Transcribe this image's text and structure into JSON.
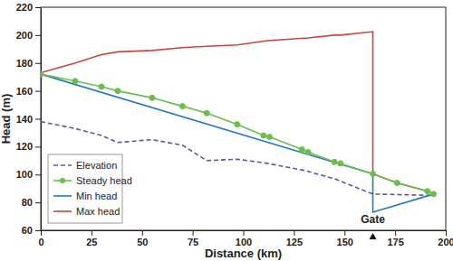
{
  "chart_data": {
    "type": "line",
    "x_label": "Distance (km)",
    "y_label": "Head (m)",
    "xlim": [
      0,
      200
    ],
    "xticks": [
      0,
      25,
      50,
      75,
      100,
      125,
      150,
      175,
      200
    ],
    "ylim": [
      60,
      220
    ],
    "yticks": [
      60,
      80,
      100,
      120,
      140,
      160,
      180,
      200,
      220
    ],
    "grid": false,
    "legend": "lower left",
    "annotations": [
      {
        "text": "Gate",
        "x": 164
      }
    ],
    "series": [
      {
        "name": "Elevation",
        "color": "#6b4fa0",
        "line_style": "dashed",
        "marker": "none",
        "x": [
          0,
          17,
          30,
          38,
          55,
          70,
          82,
          97,
          112,
          130,
          145,
          157,
          164,
          194
        ],
        "values": [
          138,
          133,
          128,
          123,
          125,
          121,
          110,
          111,
          108,
          103,
          97,
          90,
          86,
          85
        ]
      },
      {
        "name": "Steady head",
        "color": "#6abf4b",
        "line_style": "solid",
        "marker": "circle",
        "x": [
          0,
          17,
          30,
          38,
          55,
          70,
          82,
          97,
          110,
          113,
          129,
          132,
          145,
          148,
          164,
          176,
          191,
          194
        ],
        "values": [
          172,
          167,
          163,
          160,
          155,
          149,
          144,
          136,
          128,
          127,
          118,
          116,
          109,
          108,
          100.5,
          94,
          88,
          86
        ]
      },
      {
        "name": "Min head",
        "color": "#1f78c8",
        "line_style": "solid",
        "marker": "none",
        "x": [
          0,
          164,
          164,
          194
        ],
        "values": [
          172,
          100.5,
          73,
          86
        ]
      },
      {
        "name": "Max head",
        "color": "#c8463f",
        "line_style": "solid",
        "marker": "none",
        "x": [
          0,
          17,
          30,
          38,
          55,
          70,
          82,
          97,
          112,
          132,
          145,
          148,
          164,
          164,
          176,
          191,
          194
        ],
        "values": [
          173,
          180,
          186,
          188,
          189,
          191,
          192,
          193,
          196,
          198,
          200,
          200,
          202.5,
          100.5,
          94,
          88,
          86
        ]
      }
    ]
  }
}
